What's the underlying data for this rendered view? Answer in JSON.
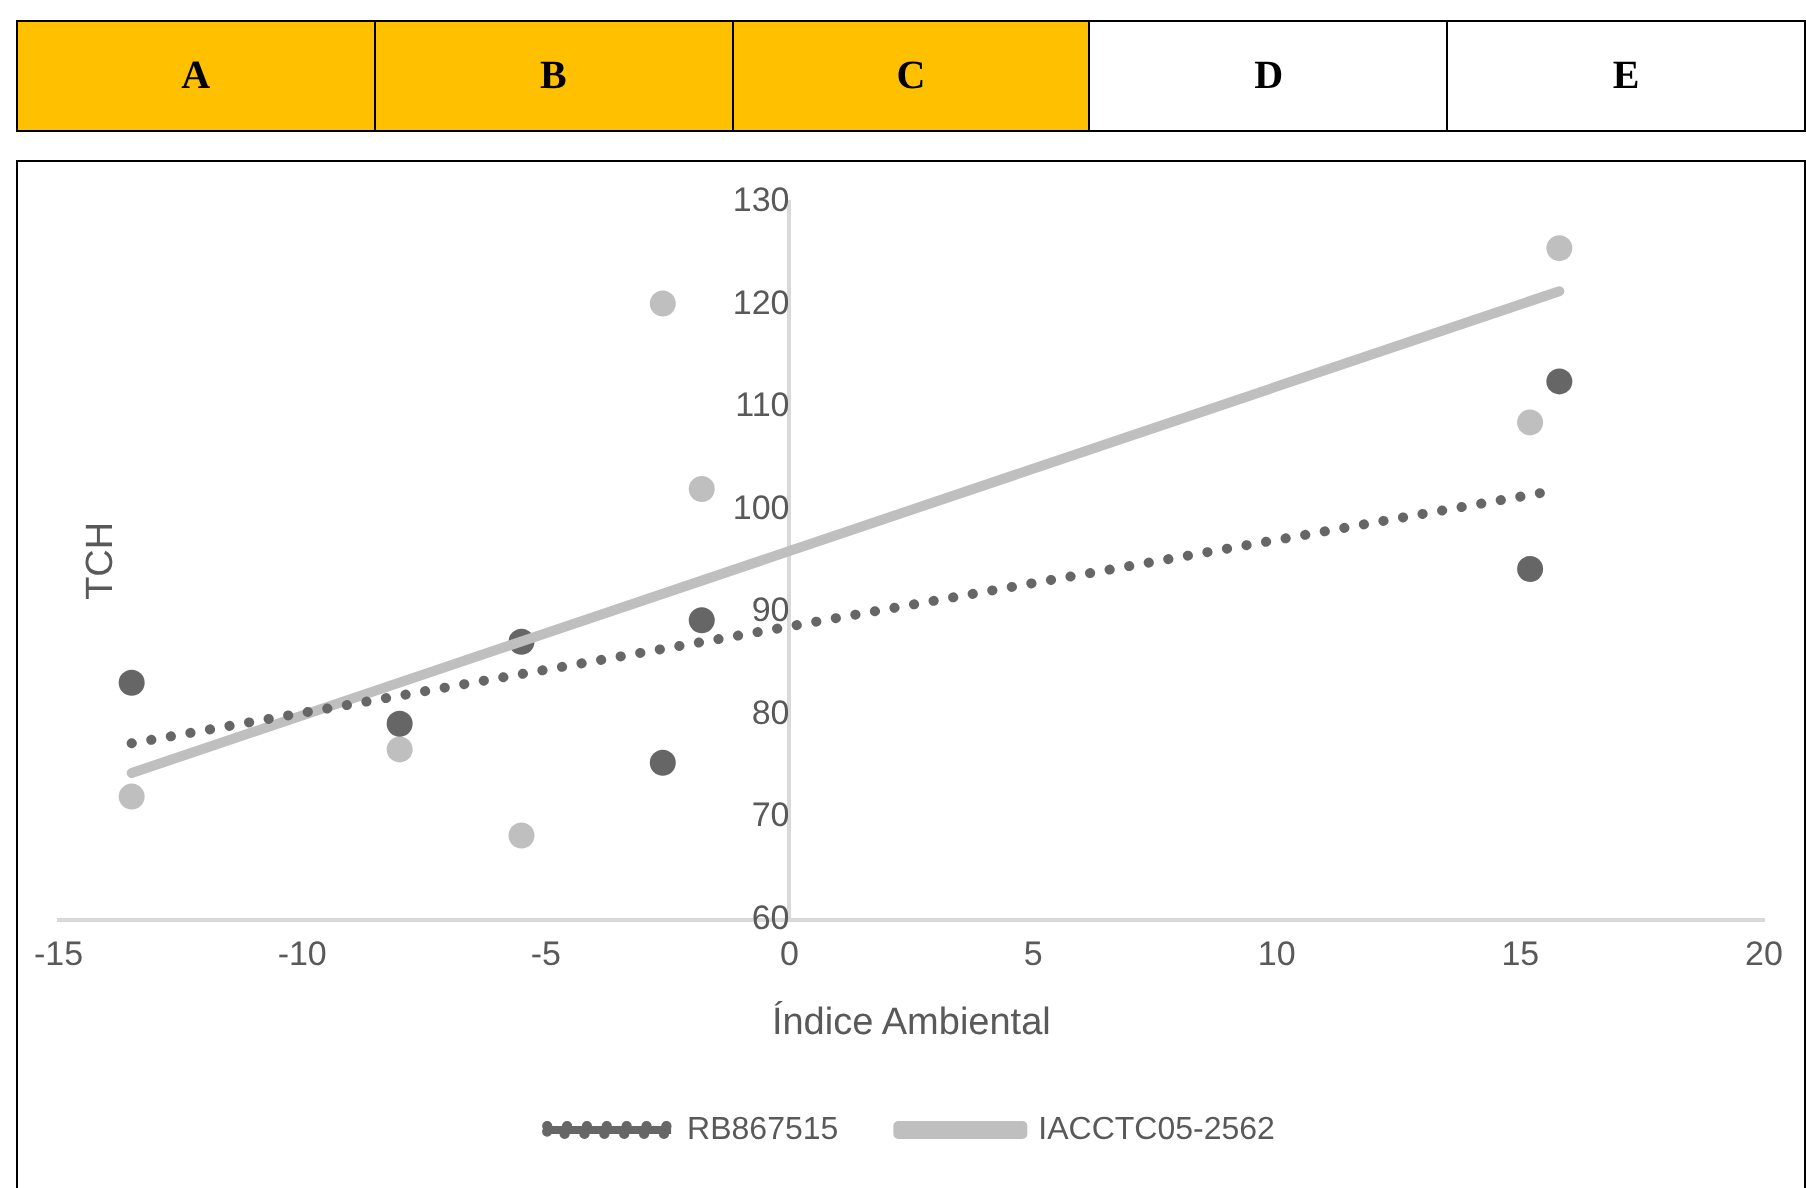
{
  "chart_data": {
    "type": "scatter",
    "xlabel": "Índice Ambiental",
    "ylabel": "TCH",
    "annotations": [
      "A",
      "B",
      "C",
      "D",
      "E"
    ],
    "xlim": [
      -15,
      20
    ],
    "xticks": [
      -15,
      -10,
      -5,
      0,
      5,
      10,
      15,
      20
    ],
    "ylim": [
      60,
      130
    ],
    "yticks": [
      60,
      70,
      80,
      90,
      100,
      110,
      120,
      130
    ],
    "grid": false,
    "legend": "bottom",
    "marker": "circle",
    "series": [
      {
        "color": "#666666",
        "x": [
          -13.5,
          -8,
          -5.5,
          -2.6,
          -1.8,
          15.2,
          15.8
        ],
        "values": [
          83.1,
          79.1,
          87.1,
          75.3,
          89.2,
          94.2,
          112.5
        ]
      },
      {
        "color": "#bfbfbf",
        "x": [
          -13.5,
          -8,
          -5.5,
          -2.6,
          -1.8,
          15.2,
          15.8
        ],
        "values": [
          72,
          76.6,
          68.2,
          120.1,
          102,
          108.5,
          125.5
        ]
      },
      {
        "type": "line",
        "name": "RB867515",
        "color": "#666666",
        "line_style": "dotted",
        "marker": "none",
        "x": [
          -13.5,
          15.4
        ],
        "values": [
          77.2,
          101.6
        ]
      },
      {
        "type": "line",
        "name": "IACCTC05-2562",
        "color": "#bfbfbf",
        "line_style": "solid",
        "marker": "none",
        "x": [
          -13.5,
          15.8
        ],
        "values": [
          74.3,
          121.3
        ]
      }
    ]
  }
}
